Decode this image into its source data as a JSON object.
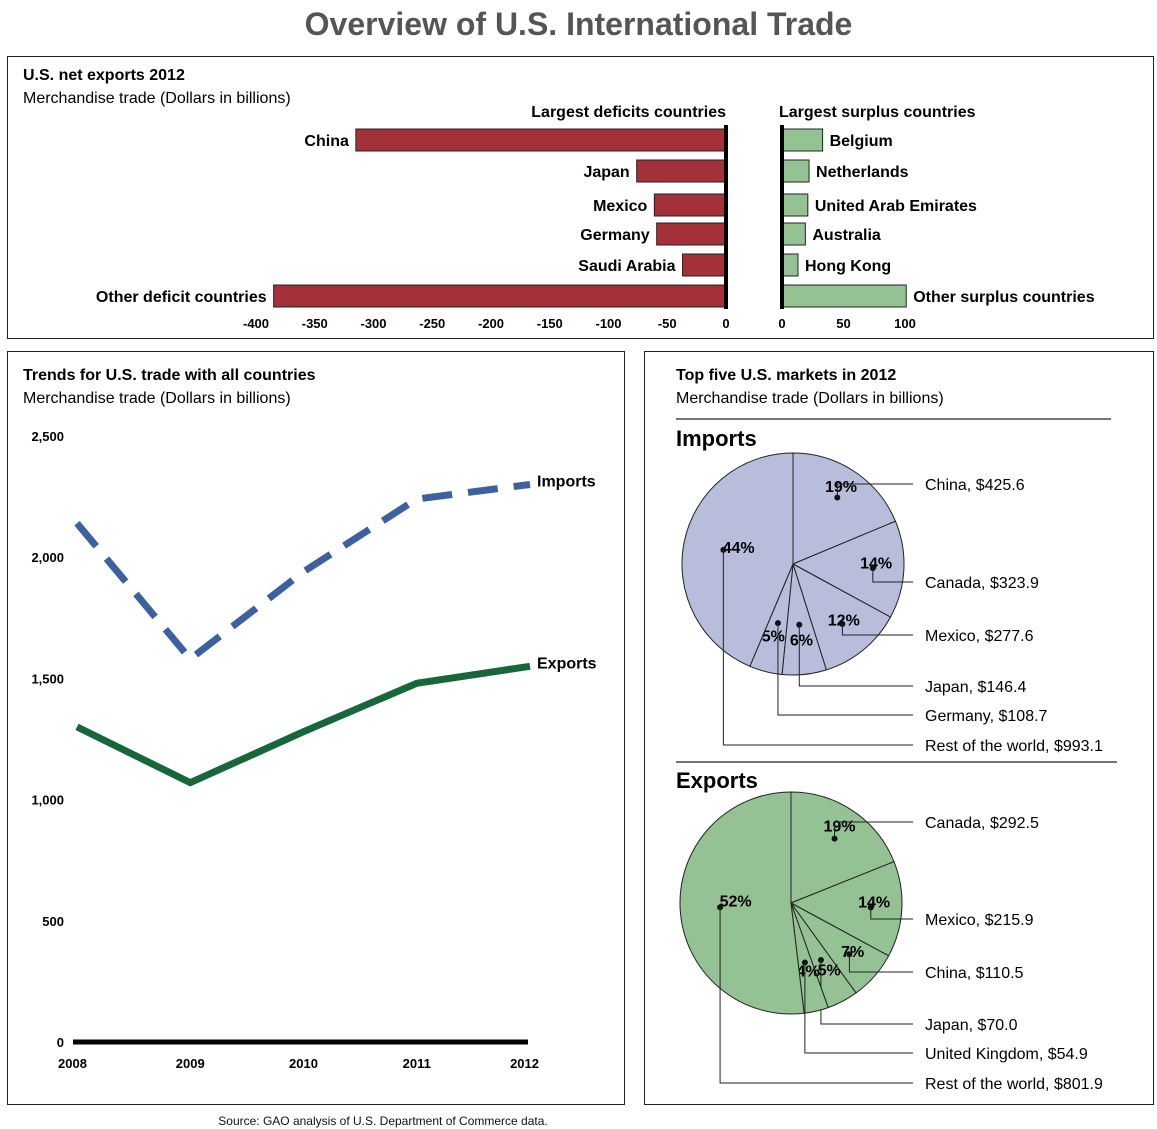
{
  "title": "Overview of U.S. International Trade",
  "source": "Source: GAO analysis of U.S. Department of Commerce data.",
  "colors": {
    "deficit_bar": "#a4313a",
    "surplus_bar": "#93c293",
    "imports_line": "#3d61a0",
    "exports_line": "#17673a",
    "imports_pie": "#b8bddb",
    "exports_pie": "#95c295"
  },
  "chart_data": [
    {
      "type": "bar",
      "orientation": "horizontal",
      "title": "U.S. net exports 2012",
      "subtitle": "Merchandise trade (Dollars in billions)",
      "deficit": {
        "heading": "Largest deficits countries",
        "categories": [
          "China",
          "Japan",
          "Mexico",
          "Germany",
          "Saudi Arabia",
          "Other deficit countries"
        ],
        "values": [
          -315,
          -76,
          -61,
          -59,
          -37,
          -385
        ],
        "xlim": [
          -400,
          0
        ],
        "ticks": [
          "-400",
          "-350",
          "-300",
          "-250",
          "-200",
          "-150",
          "-100",
          "-50",
          "0"
        ]
      },
      "surplus": {
        "heading": "Largest surplus countries",
        "categories": [
          "Belgium",
          "Netherlands",
          "United Arab Emirates",
          "Australia",
          "Hong Kong",
          "Other surplus countries"
        ],
        "values": [
          33,
          22,
          21,
          19,
          13,
          101
        ],
        "xlim": [
          0,
          100
        ],
        "ticks": [
          "0",
          "50",
          "100"
        ]
      }
    },
    {
      "type": "line",
      "title": "Trends for U.S. trade with all countries",
      "subtitle": "Merchandise trade (Dollars in billions)",
      "x": [
        "2008",
        "2009",
        "2010",
        "2011",
        "2012"
      ],
      "ylim": [
        0,
        2500
      ],
      "yticks": [
        "0",
        "500",
        "1,000",
        "1,500",
        "2,000",
        "2,500"
      ],
      "series": [
        {
          "name": "Imports",
          "values": [
            2140,
            1580,
            1940,
            2240,
            2300
          ],
          "style": "dashed"
        },
        {
          "name": "Exports",
          "values": [
            1300,
            1070,
            1280,
            1480,
            1550
          ],
          "style": "solid"
        }
      ]
    },
    {
      "type": "pie",
      "title": "Top five U.S. markets in 2012",
      "subtitle": "Merchandise trade (Dollars in billions)",
      "heading": "Imports",
      "slices": [
        {
          "pct": "19%",
          "label": "China, $425.6",
          "value": 425.6
        },
        {
          "pct": "14%",
          "label": "Canada, $323.9",
          "value": 323.9
        },
        {
          "pct": "12%",
          "label": "Mexico, $277.6",
          "value": 277.6
        },
        {
          "pct": "6%",
          "label": "Japan, $146.4",
          "value": 146.4
        },
        {
          "pct": "5%",
          "label": "Germany, $108.7",
          "value": 108.7
        },
        {
          "pct": "44%",
          "label": "Rest of the world, $993.1",
          "value": 993.1
        }
      ]
    },
    {
      "type": "pie",
      "heading": "Exports",
      "slices": [
        {
          "pct": "19%",
          "label": "Canada, $292.5",
          "value": 292.5
        },
        {
          "pct": "14%",
          "label": "Mexico, $215.9",
          "value": 215.9
        },
        {
          "pct": "7%",
          "label": "China, $110.5",
          "value": 110.5
        },
        {
          "pct": "5%",
          "label": "Japan, $70.0",
          "value": 70.0
        },
        {
          "pct": "4%",
          "label": "United Kingdom, $54.9",
          "value": 54.9
        },
        {
          "pct": "52%",
          "label": "Rest of the world, $801.9",
          "value": 801.9
        }
      ]
    }
  ]
}
